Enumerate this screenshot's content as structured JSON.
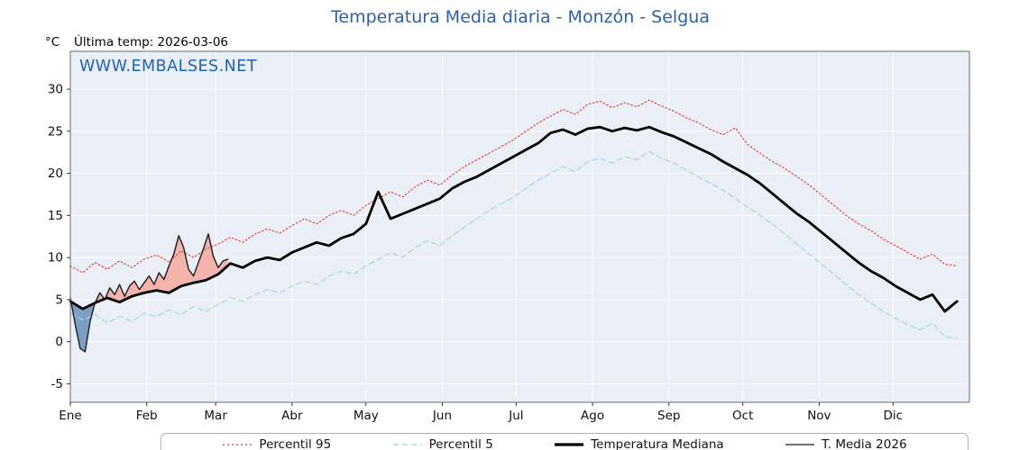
{
  "title": "Temperatura Media diaria - Monzón - Selgua",
  "y_unit": "°C",
  "last_temp_label": "Última temp: 2026-03-06",
  "watermark": "WWW.EMBALSES.NET",
  "legend": [
    {
      "label": "Percentil 95",
      "color": "#dc3b33",
      "style": "dotted"
    },
    {
      "label": "Percentil 5",
      "color": "#a9d7e6",
      "style": "dashed"
    },
    {
      "label": "Temperatura Mediana",
      "color": "#000000",
      "style": "thick"
    },
    {
      "label": "T. Media 2026",
      "color": "#1c1c1c",
      "style": "thin"
    }
  ],
  "chart_data": {
    "type": "line",
    "title": "Temperatura Media diaria - Monzón - Selgua",
    "plot_bg": "#e9eef7",
    "grid_color": "#ffffff",
    "x_axis": {
      "months": [
        "Ene",
        "Feb",
        "Mar",
        "Abr",
        "May",
        "Jun",
        "Jul",
        "Ago",
        "Sep",
        "Oct",
        "Nov",
        "Dic"
      ],
      "month_start_days": [
        1,
        32,
        60,
        91,
        121,
        152,
        182,
        213,
        244,
        274,
        305,
        335
      ],
      "range_days": [
        1,
        366
      ]
    },
    "y_axis": {
      "label": "°C",
      "ticks": [
        -5,
        0,
        5,
        10,
        15,
        20,
        25,
        30
      ],
      "range": [
        -7.2,
        34.5
      ]
    },
    "fills": {
      "above_color": "#f2b4ac",
      "below_color": "#7e9fc5",
      "between": "T. Media 2026 vs Temperatura Mediana"
    },
    "draw_order": [
      "Percentil 95",
      "Percentil 5",
      "T. Media 2026",
      "Temperatura Mediana"
    ],
    "series": [
      {
        "name": "Percentil 95",
        "color": "#dc3b33",
        "dash": "dotted",
        "width": 1.1,
        "x_start": 1,
        "x_step": 5,
        "values": [
          9.0,
          8.2,
          9.4,
          8.6,
          9.6,
          8.8,
          9.8,
          10.3,
          9.5,
          10.8,
          10.0,
          11.0,
          11.6,
          12.4,
          11.8,
          12.8,
          13.4,
          12.9,
          13.8,
          14.6,
          14.0,
          15.0,
          15.6,
          15.0,
          16.2,
          17.0,
          17.8,
          17.2,
          18.4,
          19.2,
          18.6,
          19.8,
          20.8,
          21.6,
          22.4,
          23.2,
          24.0,
          25.0,
          26.0,
          26.8,
          27.6,
          27.0,
          28.2,
          28.6,
          27.8,
          28.4,
          27.9,
          28.7,
          28.0,
          27.4,
          26.6,
          26.0,
          25.2,
          24.6,
          25.4,
          23.4,
          22.4,
          21.4,
          20.6,
          19.6,
          18.6,
          17.4,
          16.2,
          15.0,
          14.0,
          13.2,
          12.2,
          11.4,
          10.6,
          9.8,
          10.4,
          9.2,
          9.0
        ]
      },
      {
        "name": "Percentil 5",
        "color": "#a9d7e6",
        "dash": "dashed",
        "width": 1.3,
        "x_start": 1,
        "x_step": 5,
        "values": [
          3.4,
          2.6,
          3.2,
          2.2,
          3.0,
          2.4,
          3.4,
          3.0,
          3.8,
          3.2,
          4.2,
          3.6,
          4.4,
          5.2,
          4.8,
          5.6,
          6.2,
          5.8,
          6.6,
          7.2,
          6.8,
          7.8,
          8.4,
          8.0,
          9.0,
          9.8,
          10.6,
          10.0,
          11.2,
          12.0,
          11.4,
          12.6,
          13.6,
          14.6,
          15.6,
          16.4,
          17.2,
          18.2,
          19.2,
          20.0,
          20.8,
          20.2,
          21.4,
          21.8,
          21.2,
          22.0,
          21.6,
          22.6,
          21.8,
          21.2,
          20.4,
          19.6,
          18.8,
          18.0,
          17.0,
          16.0,
          15.0,
          14.0,
          12.8,
          11.6,
          10.4,
          9.2,
          8.0,
          6.8,
          5.6,
          4.6,
          3.6,
          2.8,
          2.0,
          1.4,
          2.2,
          0.6,
          0.4
        ]
      },
      {
        "name": "Temperatura Mediana",
        "color": "#000000",
        "dash": "solid",
        "width": 2.8,
        "x_start": 1,
        "x_step": 5,
        "values": [
          4.8,
          3.9,
          4.6,
          5.2,
          4.7,
          5.4,
          5.8,
          6.1,
          5.8,
          6.6,
          7.0,
          7.3,
          8.0,
          9.3,
          8.8,
          9.6,
          10.0,
          9.7,
          10.6,
          11.2,
          11.8,
          11.4,
          12.3,
          12.8,
          14.0,
          17.8,
          14.6,
          15.2,
          15.8,
          16.4,
          17.0,
          18.2,
          19.0,
          19.6,
          20.4,
          21.2,
          22.0,
          22.8,
          23.6,
          24.8,
          25.2,
          24.6,
          25.3,
          25.5,
          25.0,
          25.4,
          25.1,
          25.5,
          24.9,
          24.4,
          23.7,
          23.0,
          22.3,
          21.4,
          20.6,
          19.8,
          18.8,
          17.6,
          16.4,
          15.2,
          14.2,
          13.0,
          11.8,
          10.6,
          9.4,
          8.4,
          7.6,
          6.6,
          5.8,
          5.0,
          5.6,
          3.6,
          4.8
        ]
      },
      {
        "name": "T. Media 2026",
        "color": "#1c1c1c",
        "dash": "solid",
        "width": 1.4,
        "x_start": 1,
        "x_step": 2,
        "values": [
          5.2,
          2.0,
          -0.8,
          -1.2,
          2.4,
          4.6,
          5.8,
          5.0,
          6.4,
          5.6,
          6.8,
          5.4,
          6.6,
          7.2,
          6.2,
          7.0,
          7.8,
          6.8,
          8.2,
          7.4,
          9.0,
          10.4,
          12.6,
          11.2,
          8.6,
          7.8,
          9.4,
          11.0,
          12.8,
          10.2,
          8.8,
          9.6,
          9.8
        ]
      }
    ]
  }
}
